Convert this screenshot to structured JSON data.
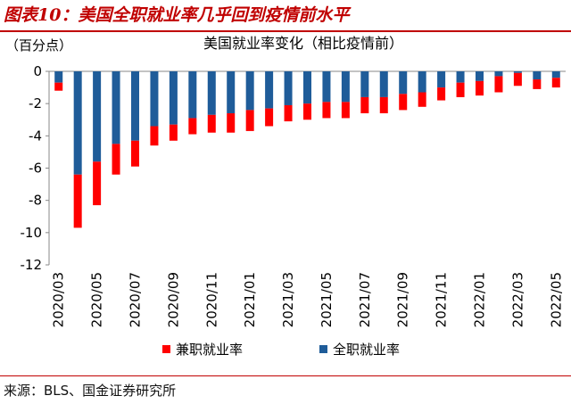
{
  "figure": {
    "title": "图表10：美国全职就业率几乎回到疫情前水平",
    "source": "来源：BLS、国金证券研究所"
  },
  "chart_data": {
    "type": "bar",
    "stacked": true,
    "title": "美国就业率变化（相比疫情前）",
    "unit": "（百分点）",
    "ylim": [
      -12,
      0
    ],
    "yticks": [
      0,
      -2,
      -4,
      -6,
      -8,
      -10,
      -12
    ],
    "categories": [
      "2020/03",
      "2020/04",
      "2020/05",
      "2020/06",
      "2020/07",
      "2020/08",
      "2020/09",
      "2020/10",
      "2020/11",
      "2020/12",
      "2021/01",
      "2021/02",
      "2021/03",
      "2021/04",
      "2021/05",
      "2021/06",
      "2021/07",
      "2021/08",
      "2021/09",
      "2021/10",
      "2021/11",
      "2021/12",
      "2022/01",
      "2022/02",
      "2022/03",
      "2022/04",
      "2022/05"
    ],
    "xtick_labels": [
      "2020/03",
      "2020/05",
      "2020/07",
      "2020/09",
      "2020/11",
      "2021/01",
      "2021/03",
      "2021/05",
      "2021/07",
      "2021/09",
      "2021/11",
      "2022/01",
      "2022/03",
      "2022/05"
    ],
    "series": [
      {
        "name": "全职就业率",
        "color": "#1f5c99",
        "values": [
          -0.7,
          -6.4,
          -5.6,
          -4.5,
          -4.3,
          -3.4,
          -3.3,
          -2.9,
          -2.7,
          -2.6,
          -2.4,
          -2.3,
          -2.1,
          -2.0,
          -1.9,
          -1.9,
          -1.6,
          -1.6,
          -1.4,
          -1.3,
          -1.0,
          -0.7,
          -0.6,
          -0.3,
          -0.1,
          -0.5,
          -0.4
        ]
      },
      {
        "name": "兼职就业率",
        "color": "#ff0000",
        "values": [
          -0.5,
          -3.3,
          -2.7,
          -1.9,
          -1.6,
          -1.2,
          -1.0,
          -1.0,
          -1.1,
          -1.2,
          -1.3,
          -1.1,
          -1.0,
          -1.0,
          -1.0,
          -1.0,
          -1.0,
          -1.0,
          -1.0,
          -0.9,
          -0.8,
          -0.9,
          -0.9,
          -1.0,
          -0.8,
          -0.6,
          -0.6
        ]
      }
    ],
    "legend": {
      "position": "bottom",
      "order": [
        "兼职就业率",
        "全职就业率"
      ]
    }
  }
}
